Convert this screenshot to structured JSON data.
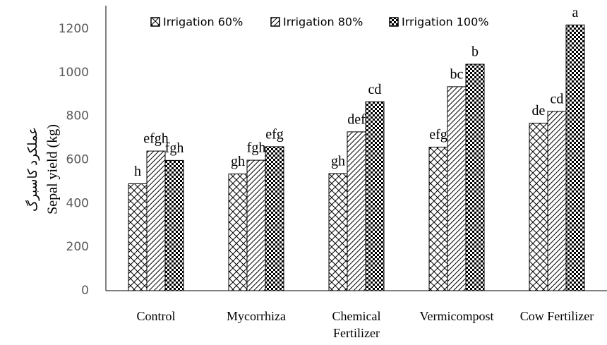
{
  "chart_data": {
    "type": "bar",
    "y_label": "Sepal yield (kg)",
    "y_label_fa": "عملکرد کاسبرگ",
    "categories": [
      "Control",
      "Mycorrhiza",
      "Chemical\nFertilizer",
      "Vermicompost",
      "Cow Fertilizer"
    ],
    "series": [
      {
        "name": "Irrigation 60%",
        "color": "#000000",
        "pattern": "crosshatch",
        "values": [
          490,
          535,
          537,
          658,
          768
        ],
        "letters": [
          "h",
          "gh",
          "gh",
          "efg",
          "de"
        ]
      },
      {
        "name": "Irrigation 80%",
        "color": "#000000",
        "pattern": "diagonal",
        "values": [
          640,
          598,
          728,
          935,
          822
        ],
        "letters": [
          "efgh",
          "fgh",
          "def",
          "bc",
          "cd"
        ]
      },
      {
        "name": "Irrigation 100%",
        "color": "#000000",
        "pattern": "checker",
        "values": [
          597,
          660,
          866,
          1038,
          1218
        ],
        "letters": [
          "fgh",
          "efg",
          "cd",
          "b",
          "a"
        ]
      }
    ],
    "ylim": [
      0,
      1300
    ],
    "yticks": [
      0,
      200,
      400,
      600,
      800,
      1000,
      1200
    ],
    "grid": false
  }
}
